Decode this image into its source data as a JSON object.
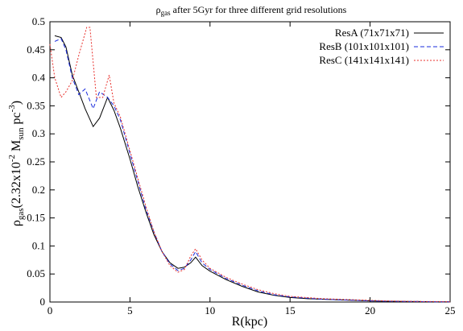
{
  "chart_data": {
    "type": "line",
    "title_parts": {
      "rho": "ρ",
      "sub": "gas",
      "rest": " after 5Gyr for three different grid resolutions"
    },
    "xlabel": "R(kpc)",
    "ylabel_parts": {
      "rho": "ρ",
      "sub": "gas",
      "a": "(2.32x10",
      "exp1": "-2",
      "b": " M",
      "sub2": "sun",
      "c": " pc",
      "exp2": "-3",
      "d": ")"
    },
    "xlim": [
      0,
      25
    ],
    "ylim": [
      0,
      0.5
    ],
    "xticks": [
      0,
      5,
      10,
      15,
      20,
      25
    ],
    "yticks": [
      0,
      0.05,
      0.1,
      0.15,
      0.2,
      0.25,
      0.3,
      0.35,
      0.4,
      0.45,
      0.5
    ],
    "grid": false,
    "legend_position": "top-right",
    "series": [
      {
        "name": "ResA (71x71x71)",
        "color": "#000000",
        "dash": "",
        "x": [
          0.3,
          0.7,
          1.0,
          1.4,
          1.8,
          2.2,
          2.7,
          3.1,
          3.6,
          4.0,
          4.4,
          5.0,
          5.5,
          6.0,
          6.5,
          7.0,
          7.5,
          8.0,
          8.4,
          8.8,
          9.1,
          9.5,
          10.0,
          11,
          12,
          13,
          14,
          15,
          16,
          17,
          18,
          19,
          20,
          21,
          22,
          23,
          24,
          25
        ],
        "y": [
          0.475,
          0.472,
          0.455,
          0.405,
          0.375,
          0.345,
          0.313,
          0.328,
          0.365,
          0.342,
          0.31,
          0.255,
          0.205,
          0.16,
          0.12,
          0.09,
          0.07,
          0.06,
          0.062,
          0.07,
          0.08,
          0.065,
          0.055,
          0.04,
          0.028,
          0.018,
          0.012,
          0.008,
          0.006,
          0.005,
          0.004,
          0.003,
          0.002,
          0.0015,
          0.001,
          0.0008,
          0.0005,
          0.0003
        ]
      },
      {
        "name": "ResB (101x101x101)",
        "color": "#1a2bdc",
        "dash": "5,3",
        "x": [
          0.3,
          0.7,
          1.0,
          1.4,
          1.8,
          2.2,
          2.7,
          3.1,
          3.6,
          4.0,
          4.4,
          5.0,
          5.5,
          6.0,
          6.5,
          7.0,
          7.5,
          8.0,
          8.4,
          8.8,
          9.1,
          9.5,
          10.0,
          11,
          12,
          13,
          14,
          15,
          16,
          17,
          18,
          19,
          20,
          21,
          22,
          23,
          24,
          25
        ],
        "y": [
          0.465,
          0.47,
          0.45,
          0.4,
          0.37,
          0.38,
          0.345,
          0.375,
          0.365,
          0.35,
          0.325,
          0.265,
          0.215,
          0.165,
          0.125,
          0.09,
          0.068,
          0.056,
          0.06,
          0.075,
          0.09,
          0.07,
          0.058,
          0.042,
          0.03,
          0.02,
          0.013,
          0.009,
          0.007,
          0.005,
          0.004,
          0.003,
          0.002,
          0.0015,
          0.001,
          0.0008,
          0.0005,
          0.0003
        ]
      },
      {
        "name": "ResC (141x141x141)",
        "color": "#e8302c",
        "dash": "2,2",
        "x": [
          0.0,
          0.3,
          0.7,
          1.0,
          1.4,
          1.8,
          2.3,
          2.5,
          2.9,
          3.3,
          3.7,
          4.0,
          4.4,
          5.0,
          5.5,
          6.0,
          6.5,
          7.0,
          7.5,
          8.0,
          8.4,
          8.8,
          9.1,
          9.5,
          10.0,
          11,
          12,
          13,
          14,
          15,
          16,
          17,
          18,
          19,
          20,
          21,
          22,
          23,
          24,
          25
        ],
        "y": [
          0.46,
          0.4,
          0.365,
          0.375,
          0.395,
          0.44,
          0.49,
          0.49,
          0.365,
          0.365,
          0.405,
          0.355,
          0.33,
          0.27,
          0.22,
          0.17,
          0.125,
          0.09,
          0.065,
          0.053,
          0.058,
          0.082,
          0.095,
          0.075,
          0.06,
          0.044,
          0.032,
          0.022,
          0.015,
          0.01,
          0.008,
          0.006,
          0.005,
          0.004,
          0.003,
          0.002,
          0.0015,
          0.001,
          0.0008,
          0.0005
        ]
      }
    ]
  }
}
